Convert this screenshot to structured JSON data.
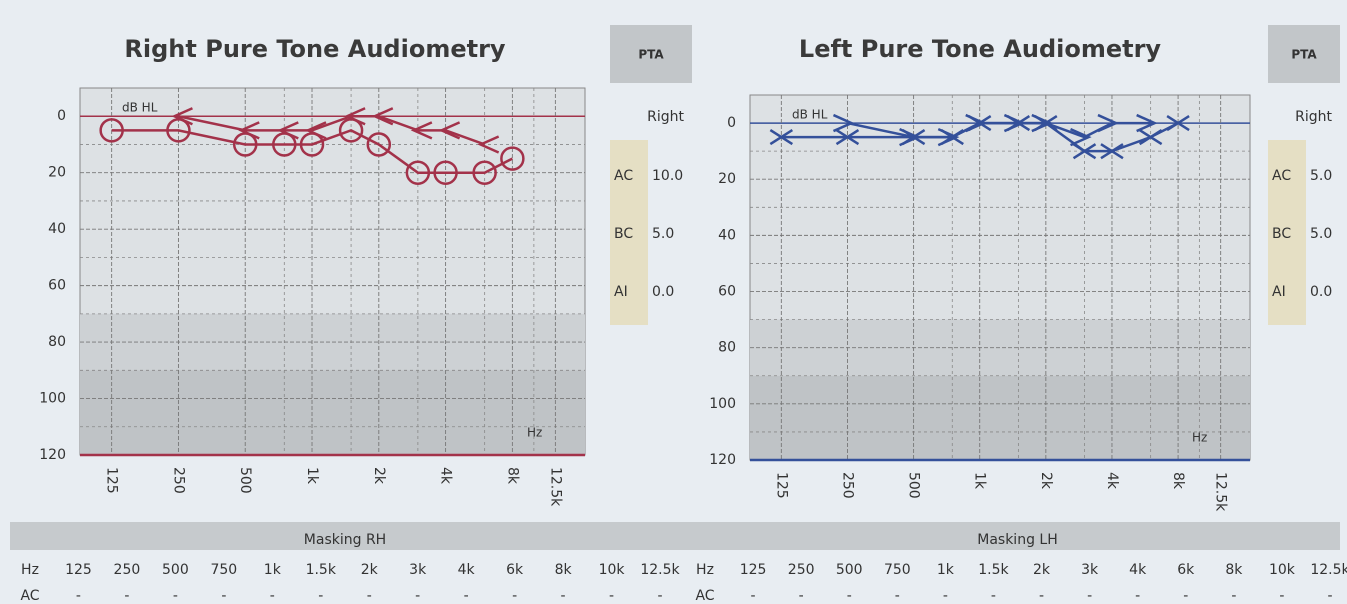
{
  "chart_data": [
    {
      "type": "audiogram",
      "title": "Right Pure Tone Audiometry",
      "y_unit": "dB HL",
      "x_unit": "Hz",
      "x_log": true,
      "y_inverted": true,
      "color": "#a3324a",
      "grid": true,
      "xlim": [
        90,
        17000
      ],
      "ylim": [
        -10,
        120
      ],
      "xticks": [
        125,
        250,
        500,
        {
          "value": 1000,
          "label": "1k"
        },
        {
          "value": 2000,
          "label": "2k"
        },
        {
          "value": 4000,
          "label": "4k"
        },
        {
          "value": 8000,
          "label": "8k"
        },
        {
          "value": 12500,
          "label": "12.5k"
        }
      ],
      "xminor": [
        750,
        1500,
        3000,
        6000,
        10000
      ],
      "yticks": [
        0,
        20,
        40,
        60,
        80,
        100,
        120
      ],
      "yminor": [
        10,
        30,
        50,
        70,
        90,
        110
      ],
      "series": [
        {
          "name": "AC",
          "marker": "o",
          "x": [
            125,
            250,
            500,
            750,
            1000,
            1500,
            2000,
            3000,
            4000,
            6000,
            8000
          ],
          "values": [
            5,
            5,
            10,
            10,
            10,
            5,
            10,
            20,
            20,
            20,
            15
          ]
        },
        {
          "name": "BC",
          "marker": "<",
          "x": [
            250,
            500,
            750,
            1000,
            1500,
            2000,
            3000,
            4000,
            6000
          ],
          "values": [
            0,
            5,
            5,
            5,
            0,
            0,
            5,
            5,
            10
          ]
        }
      ]
    },
    {
      "type": "audiogram",
      "title": "Left Pure Tone Audiometry",
      "y_unit": "dB HL",
      "x_unit": "Hz",
      "x_log": true,
      "y_inverted": true,
      "color": "#34509a",
      "grid": true,
      "xlim": [
        90,
        17000
      ],
      "ylim": [
        -10,
        120
      ],
      "xticks": [
        125,
        250,
        500,
        {
          "value": 1000,
          "label": "1k"
        },
        {
          "value": 2000,
          "label": "2k"
        },
        {
          "value": 4000,
          "label": "4k"
        },
        {
          "value": 8000,
          "label": "8k"
        },
        {
          "value": 12500,
          "label": "12.5k"
        }
      ],
      "xminor": [
        750,
        1500,
        3000,
        6000,
        10000
      ],
      "yticks": [
        0,
        20,
        40,
        60,
        80,
        100,
        120
      ],
      "yminor": [
        10,
        30,
        50,
        70,
        90,
        110
      ],
      "series": [
        {
          "name": "AC",
          "marker": "x",
          "x": [
            125,
            250,
            500,
            750,
            1000,
            1500,
            2000,
            3000,
            4000,
            6000,
            8000
          ],
          "values": [
            5,
            5,
            5,
            5,
            0,
            0,
            0,
            10,
            10,
            5,
            0
          ]
        },
        {
          "name": "BC",
          "marker": ">",
          "x": [
            250,
            500,
            750,
            1000,
            1500,
            2000,
            3000,
            4000,
            6000
          ],
          "values": [
            0,
            5,
            5,
            0,
            0,
            0,
            5,
            0,
            0
          ]
        }
      ]
    }
  ],
  "panels": [
    {
      "pta_button": "PTA",
      "pta_side": "Right",
      "pta_rows": [
        {
          "label": "AC",
          "value": "10.0"
        },
        {
          "label": "BC",
          "value": "5.0"
        },
        {
          "label": "AI",
          "value": "0.0"
        }
      ],
      "masking_title": "Masking RH",
      "masking_header": [
        "Hz",
        "125",
        "250",
        "500",
        "750",
        "1k",
        "1.5k",
        "2k",
        "3k",
        "4k",
        "6k",
        "8k",
        "10k",
        "12.5k"
      ],
      "masking_rows": [
        [
          "AC",
          "-",
          "-",
          "-",
          "-",
          "-",
          "-",
          "-",
          "-",
          "-",
          "-",
          "-",
          "-",
          "-"
        ]
      ]
    },
    {
      "pta_button": "PTA",
      "pta_side": "Right",
      "pta_rows": [
        {
          "label": "AC",
          "value": "5.0"
        },
        {
          "label": "BC",
          "value": "5.0"
        },
        {
          "label": "AI",
          "value": "0.0"
        }
      ],
      "masking_title": "Masking LH",
      "masking_header": [
        "Hz",
        "125",
        "250",
        "500",
        "750",
        "1k",
        "1.5k",
        "2k",
        "3k",
        "4k",
        "6k",
        "8k",
        "10k",
        "12.5k"
      ],
      "masking_rows": [
        [
          "AC",
          "-",
          "-",
          "-",
          "-",
          "-",
          "-",
          "-",
          "-",
          "-",
          "-",
          "-",
          "-",
          "-"
        ]
      ]
    }
  ]
}
